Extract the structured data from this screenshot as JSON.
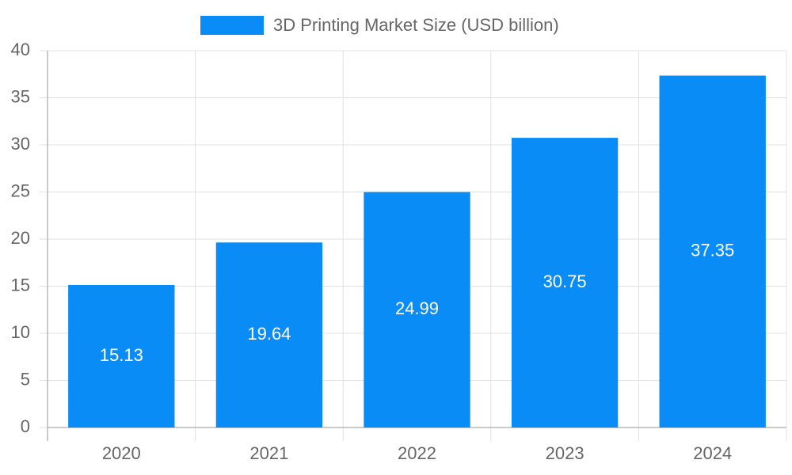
{
  "chart_data": {
    "type": "bar",
    "categories": [
      "2020",
      "2021",
      "2022",
      "2023",
      "2024"
    ],
    "series": [
      {
        "name": "3D Printing Market Size (USD billion)",
        "color": "#0a8cf7",
        "values": [
          15.13,
          19.64,
          24.99,
          30.75,
          37.35
        ]
      }
    ],
    "ylim": [
      0,
      40
    ],
    "yticks": [
      0,
      5,
      10,
      15,
      20,
      25,
      30,
      35,
      40
    ],
    "grid": true,
    "legend": "top",
    "value_label_color": "#ffffff"
  }
}
